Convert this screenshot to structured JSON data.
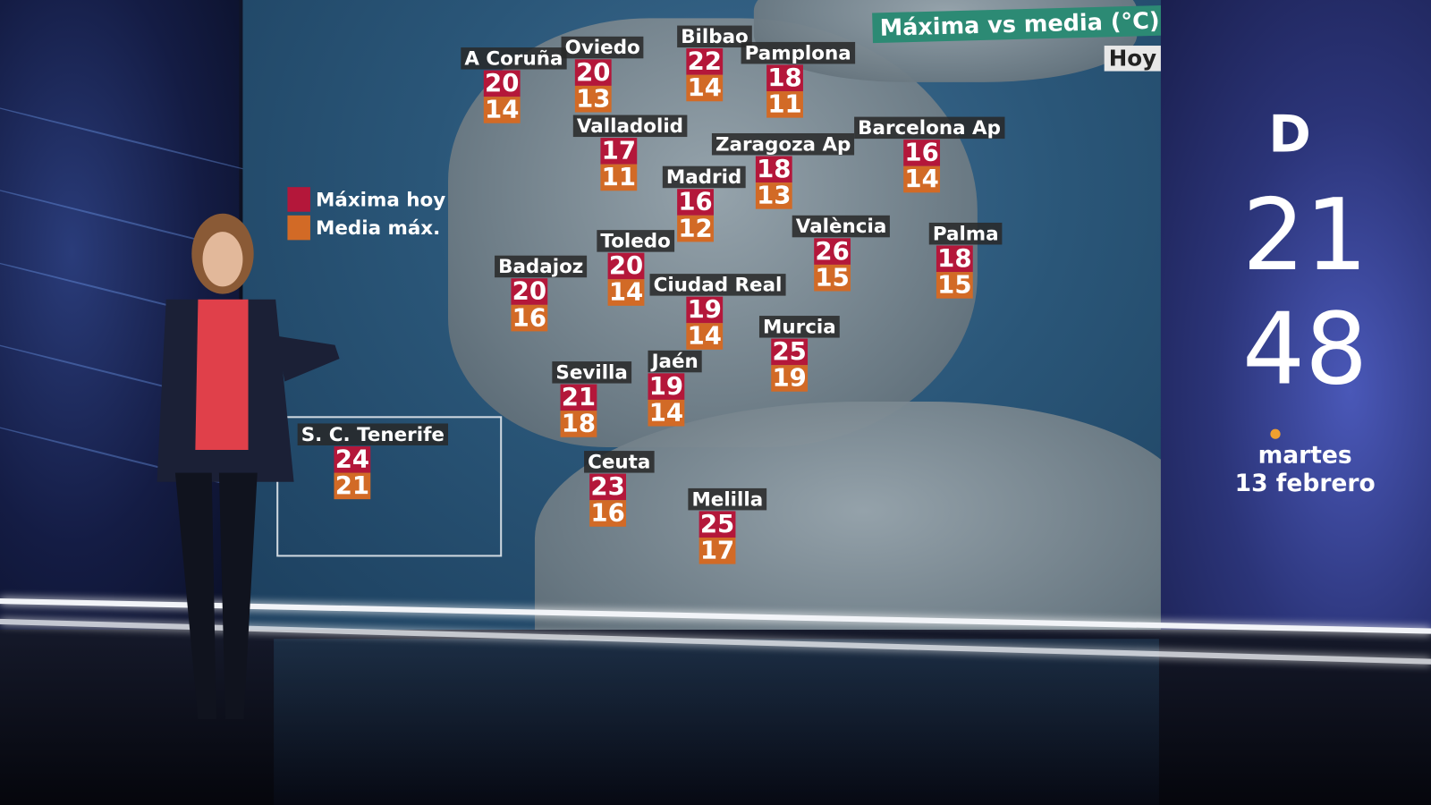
{
  "map": {
    "title": "Máxima vs media (°C)",
    "period": "Hoy",
    "legend": [
      {
        "label": "Máxima hoy",
        "color": "#b4173a"
      },
      {
        "label": "Media máx.",
        "color": "#d26a26"
      }
    ],
    "cities": [
      {
        "name": "A Coruña",
        "max": "20",
        "avg": "14"
      },
      {
        "name": "Oviedo",
        "max": "20",
        "avg": "13"
      },
      {
        "name": "Bilbao",
        "max": "22",
        "avg": "14"
      },
      {
        "name": "Pamplona",
        "max": "18",
        "avg": "11"
      },
      {
        "name": "Valladolid",
        "max": "17",
        "avg": "11"
      },
      {
        "name": "Zaragoza Ap",
        "max": "18",
        "avg": "13"
      },
      {
        "name": "Barcelona Ap",
        "max": "16",
        "avg": "14"
      },
      {
        "name": "Madrid",
        "max": "16",
        "avg": "12"
      },
      {
        "name": "València",
        "max": "26",
        "avg": "15"
      },
      {
        "name": "Palma",
        "max": "18",
        "avg": "15"
      },
      {
        "name": "Toledo",
        "max": "20",
        "avg": "14"
      },
      {
        "name": "Badajoz",
        "max": "20",
        "avg": "16"
      },
      {
        "name": "Ciudad Real",
        "max": "19",
        "avg": "14"
      },
      {
        "name": "Murcia",
        "max": "25",
        "avg": "19"
      },
      {
        "name": "Sevilla",
        "max": "21",
        "avg": "18"
      },
      {
        "name": "Jaén",
        "max": "19",
        "avg": "14"
      },
      {
        "name": "S. C. Tenerife",
        "max": "24",
        "avg": "21"
      },
      {
        "name": "Ceuta",
        "max": "23",
        "avg": "16"
      },
      {
        "name": "Melilla",
        "max": "25",
        "avg": "17"
      }
    ]
  },
  "sidebar": {
    "logo": "D",
    "clock_hours": "21",
    "clock_minutes": "48",
    "day": "martes",
    "date": "13 febrero",
    "accent": "#f0a030"
  }
}
